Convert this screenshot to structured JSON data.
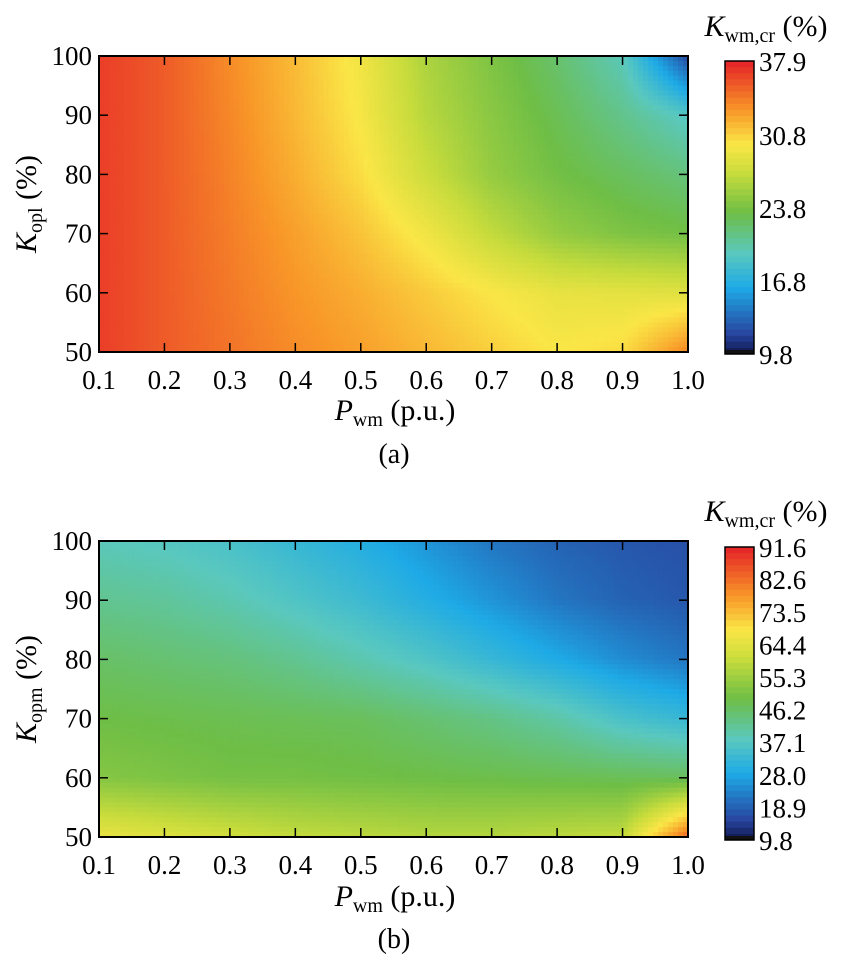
{
  "chart_data": [
    {
      "type": "heatmap",
      "caption": "(a)",
      "xlabel": {
        "main": "P",
        "sub": "wm",
        "unit": " (p.u.)"
      },
      "ylabel": {
        "main": "K",
        "sub": "opl",
        "unit": " (%)"
      },
      "colorbar_title": {
        "main": "K",
        "sub": "wm,cr",
        "unit": " (%)"
      },
      "x_ticks": [
        "0.1",
        "0.2",
        "0.3",
        "0.4",
        "0.5",
        "0.6",
        "0.7",
        "0.8",
        "0.9",
        "1.0"
      ],
      "y_ticks": [
        "50",
        "60",
        "70",
        "80",
        "90",
        "100"
      ],
      "colorbar_ticks": [
        "9.8",
        "16.8",
        "23.8",
        "30.8",
        "37.9"
      ],
      "xlim": [
        0.1,
        1.0
      ],
      "ylim": [
        50,
        100
      ],
      "clim": [
        9.8,
        37.9
      ],
      "x": [
        0.1,
        0.2,
        0.3,
        0.4,
        0.5,
        0.6,
        0.7,
        0.8,
        0.9,
        1.0
      ],
      "y": [
        50,
        60,
        70,
        80,
        90,
        100
      ],
      "z": [
        [
          37.0,
          35.8,
          34.8,
          33.8,
          33.0,
          32.0,
          31.0,
          30.0,
          30.5,
          34.0
        ],
        [
          37.0,
          35.8,
          34.6,
          33.4,
          32.4,
          31.2,
          30.0,
          29.0,
          28.8,
          28.5
        ],
        [
          37.0,
          35.8,
          34.4,
          33.0,
          31.5,
          29.5,
          27.0,
          25.0,
          24.0,
          23.5
        ],
        [
          37.0,
          35.8,
          34.2,
          32.4,
          30.4,
          27.5,
          25.0,
          23.5,
          22.5,
          21.5
        ],
        [
          37.0,
          35.8,
          34.0,
          32.0,
          29.8,
          26.5,
          24.5,
          22.8,
          21.0,
          19.0
        ],
        [
          37.0,
          35.8,
          33.8,
          31.8,
          29.5,
          26.0,
          24.0,
          22.0,
          19.5,
          11.5
        ]
      ]
    },
    {
      "type": "heatmap",
      "caption": "(b)",
      "xlabel": {
        "main": "P",
        "sub": "wm",
        "unit": " (p.u.)"
      },
      "ylabel": {
        "main": "K",
        "sub": "opm",
        "unit": " (%)"
      },
      "colorbar_title": {
        "main": "K",
        "sub": "wm,cr",
        "unit": " (%)"
      },
      "x_ticks": [
        "0.1",
        "0.2",
        "0.3",
        "0.4",
        "0.5",
        "0.6",
        "0.7",
        "0.8",
        "0.9",
        "1.0"
      ],
      "y_ticks": [
        "50",
        "60",
        "70",
        "80",
        "90",
        "100"
      ],
      "colorbar_ticks": [
        "9.8",
        "18.9",
        "28.0",
        "37.1",
        "46.2",
        "55.3",
        "64.4",
        "73.5",
        "82.6",
        "91.6"
      ],
      "xlim": [
        0.1,
        1.0
      ],
      "ylim": [
        50,
        100
      ],
      "clim": [
        9.8,
        91.6
      ],
      "x": [
        0.1,
        0.2,
        0.3,
        0.4,
        0.5,
        0.6,
        0.7,
        0.8,
        0.9,
        1.0
      ],
      "y": [
        50,
        60,
        70,
        80,
        90,
        100
      ],
      "z": [
        [
          66.0,
          64.0,
          62.0,
          60.0,
          59.0,
          58.0,
          58.0,
          59.0,
          60.0,
          84.0
        ],
        [
          52.0,
          51.0,
          50.0,
          50.0,
          49.5,
          49.0,
          48.5,
          48.0,
          47.5,
          47.0
        ],
        [
          49.0,
          48.5,
          48.0,
          47.5,
          47.0,
          45.0,
          43.0,
          40.0,
          35.0,
          32.0
        ],
        [
          46.0,
          45.0,
          44.0,
          42.0,
          39.0,
          36.0,
          32.0,
          28.0,
          24.0,
          21.0
        ],
        [
          42.0,
          41.0,
          39.0,
          36.0,
          33.0,
          29.0,
          25.0,
          21.0,
          18.5,
          17.0
        ],
        [
          38.0,
          37.0,
          35.0,
          32.0,
          29.0,
          25.0,
          21.0,
          18.5,
          17.0,
          16.0
        ]
      ]
    }
  ]
}
